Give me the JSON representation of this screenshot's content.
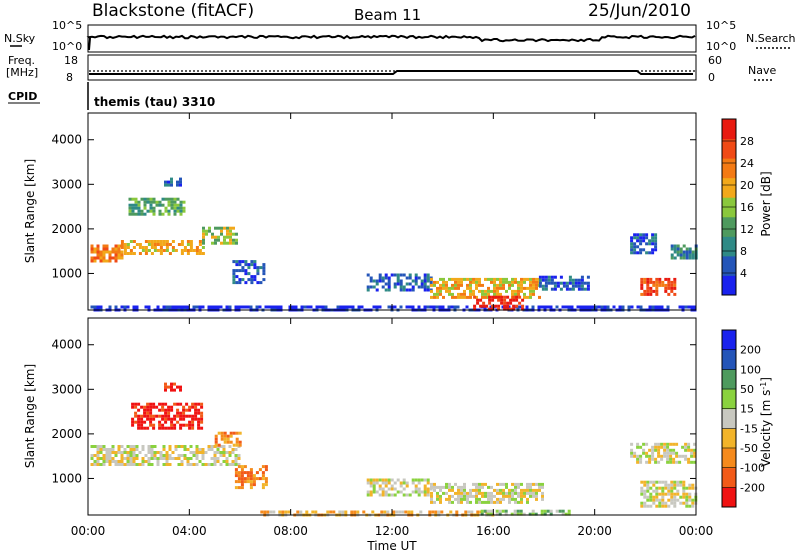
{
  "header": {
    "title": "Blackstone (fitACF)",
    "beam": "Beam 11",
    "date": "25/Jun/2010"
  },
  "status_panel": {
    "left_label_top": "N.Sky",
    "left_ticks_top": [
      "10^5",
      "10^0"
    ],
    "right_label_top": "N.Search",
    "right_ticks_top": [
      "10^5",
      "10^0"
    ],
    "left_label_mid": [
      "Freq.",
      "[MHz]"
    ],
    "left_ticks_mid": [
      "18",
      "8"
    ],
    "right_label_mid": "Nave",
    "right_ticks_mid": [
      "60",
      "0"
    ],
    "cpid_label": "CPID",
    "cpid_value": "themis (tau) 3310"
  },
  "colors": {
    "power_scale": [
      "#1a22ee",
      "#2455b8",
      "#2f8a86",
      "#4e9a5e",
      "#8ac83c",
      "#f2a81a",
      "#f37a14",
      "#f04a16",
      "#e81a10"
    ],
    "velocity_scale": [
      "#f01212",
      "#f25a18",
      "#f58a1c",
      "#f2b42a",
      "#c8c8c0",
      "#8ad23e",
      "#4e9a5e",
      "#2455b8",
      "#1a22ee"
    ]
  },
  "chart_data": [
    {
      "type": "heatmap",
      "name": "power-panel",
      "ylabel": "Slant Range [km]",
      "xlabel": "",
      "ylim": [
        180,
        4600
      ],
      "xlim": [
        0,
        24
      ],
      "y_ticks": [
        "1000",
        "2000",
        "3000",
        "4000"
      ],
      "y_tick_values": [
        1000,
        2000,
        3000,
        4000
      ],
      "x_tick_values": [
        0,
        4,
        8,
        12,
        16,
        20,
        24
      ],
      "colorbar": {
        "label": "Power [dB]",
        "ticks": [
          "4",
          "8",
          "12",
          "16",
          "20",
          "24",
          "28"
        ],
        "tick_values": [
          4,
          8,
          12,
          16,
          20,
          24,
          28
        ],
        "range": [
          0,
          32
        ]
      },
      "regions": [
        {
          "t0": 0.1,
          "t1": 1.3,
          "r0": 1250,
          "r1": 1650,
          "level": 6
        },
        {
          "t0": 1.3,
          "t1": 4.5,
          "r0": 1450,
          "r1": 1750,
          "level": 5
        },
        {
          "t0": 4.5,
          "t1": 5.9,
          "r0": 1650,
          "r1": 2050,
          "level": 4
        },
        {
          "t0": 1.6,
          "t1": 3.8,
          "r0": 2300,
          "r1": 2700,
          "level": 3
        },
        {
          "t0": 3.0,
          "t1": 3.6,
          "r0": 2950,
          "r1": 3150,
          "level": 1
        },
        {
          "t0": 5.7,
          "t1": 6.9,
          "r0": 800,
          "r1": 1300,
          "level": 1
        },
        {
          "t0": 0.1,
          "t1": 24.0,
          "r0": 200,
          "r1": 280,
          "level": 0
        },
        {
          "t0": 11.0,
          "t1": 13.5,
          "r0": 650,
          "r1": 1000,
          "level": 1
        },
        {
          "t0": 13.5,
          "t1": 17.8,
          "r0": 450,
          "r1": 900,
          "level": 5
        },
        {
          "t0": 15.2,
          "t1": 17.2,
          "r0": 200,
          "r1": 500,
          "level": 8
        },
        {
          "t0": 17.8,
          "t1": 19.8,
          "r0": 650,
          "r1": 950,
          "level": 1
        },
        {
          "t0": 21.8,
          "t1": 23.2,
          "r0": 500,
          "r1": 900,
          "level": 7
        },
        {
          "t0": 23.0,
          "t1": 24.0,
          "r0": 1350,
          "r1": 1650,
          "level": 2
        },
        {
          "t0": 21.4,
          "t1": 22.4,
          "r0": 1450,
          "r1": 1900,
          "level": 1
        }
      ]
    },
    {
      "type": "heatmap",
      "name": "velocity-panel",
      "ylabel": "Slant Range [km]",
      "xlabel": "Time UT",
      "ylim": [
        180,
        4600
      ],
      "xlim": [
        0,
        24
      ],
      "y_ticks": [
        "1000",
        "2000",
        "3000",
        "4000"
      ],
      "y_tick_values": [
        1000,
        2000,
        3000,
        4000
      ],
      "x_ticks": [
        "00:00",
        "04:00",
        "08:00",
        "12:00",
        "16:00",
        "20:00",
        "00:00"
      ],
      "x_tick_values": [
        0,
        4,
        8,
        12,
        16,
        20,
        24
      ],
      "colorbar": {
        "label": "Velocity [m s",
        "label_sup": "-1",
        "label_end": "]",
        "ticks": [
          "-200",
          "-100",
          "-50",
          "-15",
          "15",
          "50",
          "100",
          "200"
        ],
        "range_levels": 9
      },
      "regions": [
        {
          "t0": 0.1,
          "t1": 6.0,
          "r0": 1300,
          "r1": 1750,
          "level": 4
        },
        {
          "t0": 1.7,
          "t1": 4.5,
          "r0": 2150,
          "r1": 2700,
          "level": 0
        },
        {
          "t0": 3.0,
          "t1": 3.6,
          "r0": 2950,
          "r1": 3150,
          "level": 0
        },
        {
          "t0": 5.0,
          "t1": 6.0,
          "r0": 1750,
          "r1": 2050,
          "level": 2
        },
        {
          "t0": 5.8,
          "t1": 7.0,
          "r0": 800,
          "r1": 1300,
          "level": 2
        },
        {
          "t0": 6.8,
          "t1": 16.0,
          "r0": 200,
          "r1": 280,
          "level": 3
        },
        {
          "t0": 11.0,
          "t1": 13.5,
          "r0": 650,
          "r1": 1000,
          "level": 4
        },
        {
          "t0": 13.5,
          "t1": 18.0,
          "r0": 450,
          "r1": 900,
          "level": 4
        },
        {
          "t0": 21.8,
          "t1": 24.0,
          "r0": 400,
          "r1": 950,
          "level": 4
        },
        {
          "t0": 21.4,
          "t1": 24.0,
          "r0": 1350,
          "r1": 1800,
          "level": 4
        },
        {
          "t0": 15.5,
          "t1": 19.0,
          "r0": 200,
          "r1": 300,
          "level": 5
        }
      ]
    }
  ]
}
